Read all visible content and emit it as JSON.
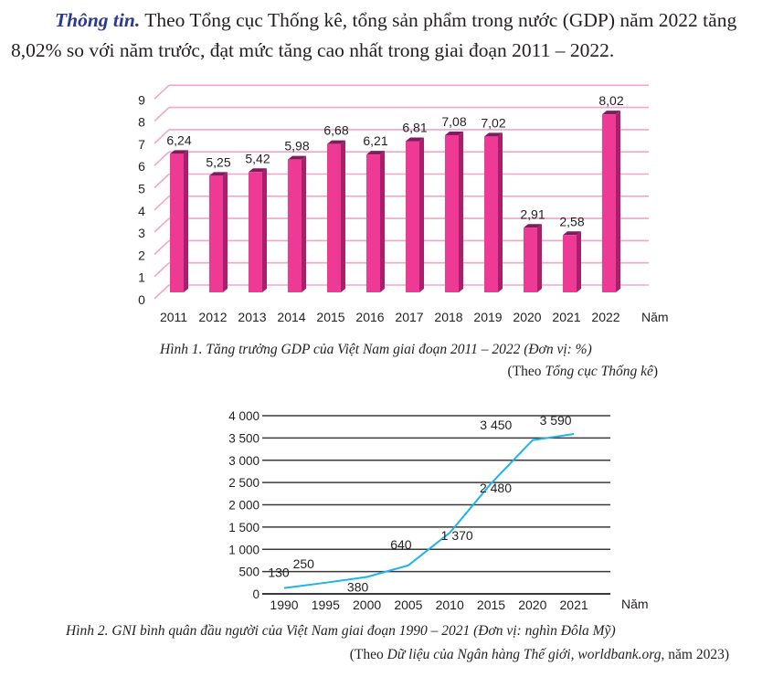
{
  "intro": {
    "lead": "Thông tin.",
    "text": " Theo Tổng cục Thống kê, tổng sản phẩm trong nước (GDP) năm 2022 tăng 8,02% so với năm trước, đạt mức tăng cao nhất trong giai đoạn 2011 – 2022."
  },
  "figure1": {
    "caption": "Hình 1. Tăng trưởng GDP của Việt Nam giai đoạn 2011 – 2022 (Đơn vị: %)",
    "source_prefix": "(Theo ",
    "source_italic": "Tổng cục Thống kê",
    "source_suffix": ")"
  },
  "figure2": {
    "caption": "Hình 2. GNI bình quân đầu người của Việt Nam giai đoạn 1990 – 2021 (Đơn vị: nghìn Đôla Mỹ)",
    "source_prefix": "(Theo ",
    "source_italic": "Dữ liệu của Ngân hàng Thế giới, worldbank.org",
    "source_suffix": ", năm 2023)"
  },
  "chart_data": [
    {
      "type": "bar",
      "style": "3d",
      "categories": [
        "2011",
        "2012",
        "2013",
        "2014",
        "2015",
        "2016",
        "2017",
        "2018",
        "2019",
        "2020",
        "2021",
        "2022"
      ],
      "values": [
        6.24,
        5.25,
        5.42,
        5.98,
        6.68,
        6.21,
        6.81,
        7.08,
        7.02,
        2.91,
        2.58,
        8.02
      ],
      "value_labels": [
        "6,24",
        "5,25",
        "5,42",
        "5,98",
        "6,68",
        "6,21",
        "6,81",
        "7,08",
        "7,02",
        "2,91",
        "2,58",
        "8,02"
      ],
      "xlabel": "Năm",
      "ylabel": "",
      "ylim": [
        0,
        9
      ],
      "yticks": [
        0,
        1,
        2,
        3,
        4,
        5,
        6,
        7,
        8,
        9
      ],
      "grid": true,
      "colors": {
        "bar_front": "#ee3a94",
        "bar_side": "#a8206a",
        "bar_top": "#7d1d5c",
        "grid": "#f5a3c8"
      }
    },
    {
      "type": "line",
      "categories": [
        "1990",
        "1995",
        "2000",
        "2005",
        "2010",
        "2015",
        "2020",
        "2021"
      ],
      "values": [
        130,
        250,
        380,
        640,
        1370,
        2480,
        3450,
        3590
      ],
      "value_labels": [
        "130",
        "250",
        "380",
        "640",
        "1 370",
        "2 480",
        "3 450",
        "3 590"
      ],
      "xlabel": "Năm",
      "ylabel": "",
      "ylim": [
        0,
        4000
      ],
      "yticks": [
        0,
        500,
        1000,
        1500,
        2000,
        2500,
        3000,
        3500,
        4000
      ],
      "ytick_labels": [
        "0",
        "500",
        "1 000",
        "1 500",
        "2 000",
        "2 500",
        "3 000",
        "3 500",
        "4 000"
      ],
      "grid": true,
      "colors": {
        "line": "#1fb3ea",
        "grid": "#3a3a3a"
      }
    }
  ]
}
